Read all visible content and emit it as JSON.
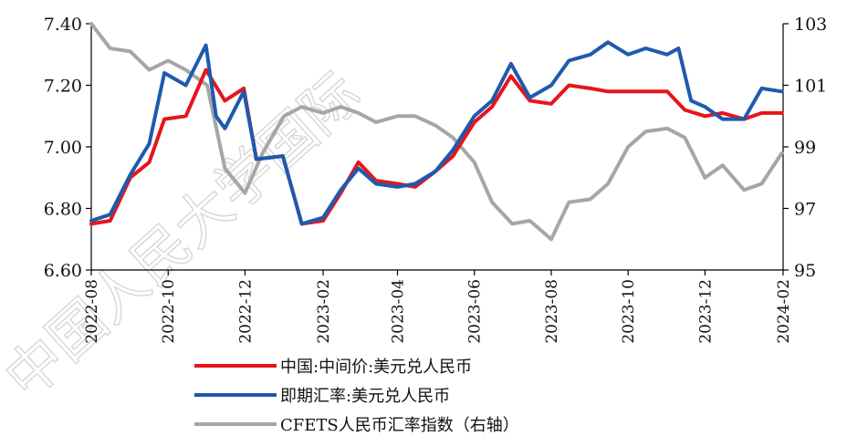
{
  "chart_data": {
    "type": "line",
    "title": "",
    "xlabel": "",
    "ylabel": "",
    "x_ticks": [
      "2022-08",
      "2022-10",
      "2022-12",
      "2023-02",
      "2023-04",
      "2023-06",
      "2023-08",
      "2023-10",
      "2023-12",
      "2024-02"
    ],
    "x_range": [
      "2022-08",
      "2024-02"
    ],
    "y_left": {
      "range": [
        6.6,
        7.4
      ],
      "ticks": [
        "6.60",
        "6.80",
        "7.00",
        "7.20",
        "7.40"
      ]
    },
    "y_right": {
      "range": [
        95,
        103
      ],
      "ticks": [
        "95",
        "97",
        "99",
        "101",
        "103"
      ]
    },
    "legend_position": "bottom",
    "grid": false,
    "series": [
      {
        "name": "中国:中间价:美元兑人民币",
        "axis": "left",
        "color": "#e8141b",
        "data": [
          [
            "2022-08-01",
            6.75
          ],
          [
            "2022-08-16",
            6.76
          ],
          [
            "2022-09-01",
            6.9
          ],
          [
            "2022-09-16",
            6.95
          ],
          [
            "2022-09-28",
            7.09
          ],
          [
            "2022-10-15",
            7.1
          ],
          [
            "2022-10-31",
            7.25
          ],
          [
            "2022-11-15",
            7.15
          ],
          [
            "2022-11-30",
            7.19
          ],
          [
            "2022-12-10",
            6.96
          ],
          [
            "2022-12-31",
            6.97
          ],
          [
            "2023-01-15",
            6.75
          ],
          [
            "2023-02-01",
            6.76
          ],
          [
            "2023-02-15",
            6.85
          ],
          [
            "2023-03-01",
            6.95
          ],
          [
            "2023-03-15",
            6.89
          ],
          [
            "2023-04-01",
            6.88
          ],
          [
            "2023-04-15",
            6.87
          ],
          [
            "2023-05-01",
            6.92
          ],
          [
            "2023-05-15",
            6.97
          ],
          [
            "2023-06-01",
            7.08
          ],
          [
            "2023-06-15",
            7.13
          ],
          [
            "2023-06-30",
            7.23
          ],
          [
            "2023-07-15",
            7.15
          ],
          [
            "2023-08-01",
            7.14
          ],
          [
            "2023-08-15",
            7.2
          ],
          [
            "2023-09-01",
            7.19
          ],
          [
            "2023-09-15",
            7.18
          ],
          [
            "2023-10-01",
            7.18
          ],
          [
            "2023-11-01",
            7.18
          ],
          [
            "2023-11-15",
            7.12
          ],
          [
            "2023-12-01",
            7.1
          ],
          [
            "2023-12-15",
            7.11
          ],
          [
            "2024-01-01",
            7.09
          ],
          [
            "2024-01-15",
            7.11
          ],
          [
            "2024-01-31",
            7.11
          ]
        ]
      },
      {
        "name": "即期汇率:美元兑人民币",
        "axis": "left",
        "color": "#1d5aae",
        "data": [
          [
            "2022-08-01",
            6.76
          ],
          [
            "2022-08-16",
            6.78
          ],
          [
            "2022-09-01",
            6.91
          ],
          [
            "2022-09-16",
            7.01
          ],
          [
            "2022-09-28",
            7.24
          ],
          [
            "2022-10-15",
            7.2
          ],
          [
            "2022-10-31",
            7.33
          ],
          [
            "2022-11-08",
            7.1
          ],
          [
            "2022-11-15",
            7.06
          ],
          [
            "2022-11-30",
            7.18
          ],
          [
            "2022-12-10",
            6.96
          ],
          [
            "2022-12-31",
            6.97
          ],
          [
            "2023-01-15",
            6.75
          ],
          [
            "2023-02-01",
            6.77
          ],
          [
            "2023-02-15",
            6.86
          ],
          [
            "2023-03-01",
            6.93
          ],
          [
            "2023-03-15",
            6.88
          ],
          [
            "2023-04-01",
            6.87
          ],
          [
            "2023-04-15",
            6.88
          ],
          [
            "2023-05-01",
            6.92
          ],
          [
            "2023-05-15",
            6.99
          ],
          [
            "2023-06-01",
            7.1
          ],
          [
            "2023-06-15",
            7.15
          ],
          [
            "2023-06-30",
            7.27
          ],
          [
            "2023-07-15",
            7.16
          ],
          [
            "2023-08-01",
            7.2
          ],
          [
            "2023-08-15",
            7.28
          ],
          [
            "2023-09-01",
            7.3
          ],
          [
            "2023-09-15",
            7.34
          ],
          [
            "2023-10-01",
            7.3
          ],
          [
            "2023-10-15",
            7.32
          ],
          [
            "2023-11-01",
            7.3
          ],
          [
            "2023-11-10",
            7.32
          ],
          [
            "2023-11-20",
            7.15
          ],
          [
            "2023-12-01",
            7.13
          ],
          [
            "2023-12-15",
            7.09
          ],
          [
            "2024-01-01",
            7.09
          ],
          [
            "2024-01-15",
            7.19
          ],
          [
            "2024-01-31",
            7.18
          ]
        ]
      },
      {
        "name": "CFETS人民币汇率指数（右轴）",
        "axis": "right",
        "color": "#a6a6a6",
        "data": [
          [
            "2022-08-01",
            103.0
          ],
          [
            "2022-08-16",
            102.2
          ],
          [
            "2022-09-01",
            102.1
          ],
          [
            "2022-09-16",
            101.5
          ],
          [
            "2022-10-01",
            101.8
          ],
          [
            "2022-10-15",
            101.5
          ],
          [
            "2022-11-01",
            101.0
          ],
          [
            "2022-11-15",
            98.3
          ],
          [
            "2022-12-01",
            97.5
          ],
          [
            "2022-12-15",
            98.8
          ],
          [
            "2023-01-01",
            100.0
          ],
          [
            "2023-01-15",
            100.3
          ],
          [
            "2023-02-01",
            100.1
          ],
          [
            "2023-02-15",
            100.3
          ],
          [
            "2023-03-01",
            100.1
          ],
          [
            "2023-03-15",
            99.8
          ],
          [
            "2023-04-01",
            100.0
          ],
          [
            "2023-04-15",
            100.0
          ],
          [
            "2023-05-01",
            99.7
          ],
          [
            "2023-05-15",
            99.3
          ],
          [
            "2023-06-01",
            98.5
          ],
          [
            "2023-06-15",
            97.2
          ],
          [
            "2023-07-01",
            96.5
          ],
          [
            "2023-07-15",
            96.6
          ],
          [
            "2023-08-01",
            96.0
          ],
          [
            "2023-08-15",
            97.2
          ],
          [
            "2023-09-01",
            97.3
          ],
          [
            "2023-09-15",
            97.8
          ],
          [
            "2023-10-01",
            99.0
          ],
          [
            "2023-10-15",
            99.5
          ],
          [
            "2023-11-01",
            99.6
          ],
          [
            "2023-11-15",
            99.3
          ],
          [
            "2023-12-01",
            98.0
          ],
          [
            "2023-12-15",
            98.4
          ],
          [
            "2024-01-01",
            97.6
          ],
          [
            "2024-01-15",
            97.8
          ],
          [
            "2024-01-31",
            98.8
          ]
        ]
      }
    ]
  },
  "legend": [
    {
      "label": "中国:中间价:美元兑人民币",
      "color": "#e8141b"
    },
    {
      "label": "即期汇率:美元兑人民币",
      "color": "#1d5aae"
    },
    {
      "label": "CFETS人民币汇率指数（右轴）",
      "color": "#a6a6a6"
    }
  ],
  "watermark": {
    "text": "中国人民大学国际"
  }
}
